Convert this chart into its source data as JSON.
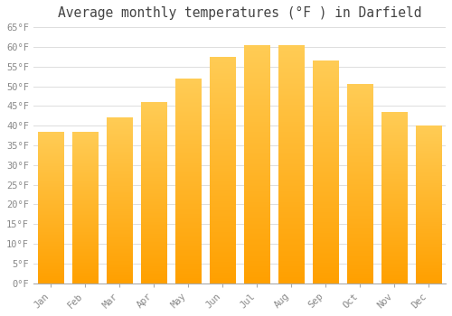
{
  "title": "Average monthly temperatures (°F ) in Darfield",
  "months": [
    "Jan",
    "Feb",
    "Mar",
    "Apr",
    "May",
    "Jun",
    "Jul",
    "Aug",
    "Sep",
    "Oct",
    "Nov",
    "Dec"
  ],
  "values": [
    38.5,
    38.5,
    42.0,
    46.0,
    52.0,
    57.5,
    60.5,
    60.5,
    56.5,
    50.5,
    43.5,
    40.0
  ],
  "bar_color_light": "#FFCC55",
  "bar_color_dark": "#FFA000",
  "background_color": "#FFFFFF",
  "grid_color": "#DDDDDD",
  "tick_label_color": "#888888",
  "title_color": "#444444",
  "ylim": [
    0,
    65
  ],
  "yticks": [
    0,
    5,
    10,
    15,
    20,
    25,
    30,
    35,
    40,
    45,
    50,
    55,
    60,
    65
  ],
  "bar_width": 0.75,
  "tick_fontsize": 7.5,
  "title_fontsize": 10.5
}
